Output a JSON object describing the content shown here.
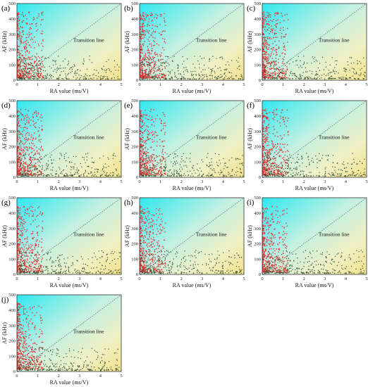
{
  "chart_data": [
    {
      "panel_label": "(a)",
      "type": "scatter",
      "xlabel": "RA value (ms/V)",
      "ylabel": "AF (kHz)",
      "annotation": "Transition line",
      "xlim": [
        0,
        5
      ],
      "ylim": [
        0,
        500
      ],
      "xticks": [
        "0",
        "1",
        "2",
        "3",
        "4",
        "5"
      ],
      "yticks": [
        "0",
        "100",
        "200",
        "300",
        "400",
        "500"
      ],
      "transition_line": [
        [
          0,
          0
        ],
        [
          5,
          500
        ]
      ],
      "grid": false,
      "background": "gradient cyan (top-left) to yellow (bottom-right)",
      "series_colors": {
        "shear": "#e8332f",
        "tensile": "#2e4a34"
      }
    },
    {
      "panel_label": "(b)",
      "type": "scatter",
      "xlabel": "RA value (ms/V)",
      "ylabel": "AF (kHz)",
      "annotation": "Transition line",
      "xlim": [
        0,
        5
      ],
      "ylim": [
        0,
        500
      ],
      "xticks": [
        "0",
        "1",
        "2",
        "3",
        "4",
        "5"
      ],
      "yticks": [
        "0",
        "100",
        "200",
        "300",
        "400",
        "500"
      ],
      "transition_line": [
        [
          0,
          0
        ],
        [
          5,
          500
        ]
      ],
      "grid": false,
      "series_colors": {
        "shear": "#e8332f",
        "tensile": "#2e4a34"
      }
    },
    {
      "panel_label": "(c)",
      "type": "scatter",
      "xlabel": "RA value (ms/V)",
      "ylabel": "AF (kHz)",
      "annotation": "Transition line",
      "xlim": [
        0,
        5
      ],
      "ylim": [
        0,
        500
      ],
      "xticks": [
        "0",
        "1",
        "2",
        "3",
        "4",
        "5"
      ],
      "yticks": [
        "0",
        "100",
        "200",
        "300",
        "400",
        "500"
      ],
      "transition_line": [
        [
          0,
          0
        ],
        [
          5,
          500
        ]
      ],
      "grid": false,
      "series_colors": {
        "shear": "#e8332f",
        "tensile": "#2e4a34"
      }
    },
    {
      "panel_label": "(d)",
      "type": "scatter",
      "xlabel": "RA value (ms/V)",
      "ylabel": "AF (kHz)",
      "annotation": "Transition line",
      "xlim": [
        0,
        5
      ],
      "ylim": [
        0,
        500
      ],
      "xticks": [
        "0",
        "1",
        "2",
        "3",
        "4",
        "5"
      ],
      "yticks": [
        "0",
        "100",
        "200",
        "300",
        "400",
        "500"
      ],
      "transition_line": [
        [
          0,
          0
        ],
        [
          5,
          500
        ]
      ],
      "grid": false,
      "series_colors": {
        "shear": "#e8332f",
        "tensile": "#2e4a34"
      }
    },
    {
      "panel_label": "(e)",
      "type": "scatter",
      "xlabel": "RA value (ms/V)",
      "ylabel": "AF (kHz)",
      "annotation": "Transition line",
      "xlim": [
        0,
        5
      ],
      "ylim": [
        0,
        500
      ],
      "xticks": [
        "0",
        "1",
        "2",
        "3",
        "4",
        "5"
      ],
      "yticks": [
        "0",
        "100",
        "200",
        "300",
        "400",
        "500"
      ],
      "transition_line": [
        [
          0,
          0
        ],
        [
          5,
          500
        ]
      ],
      "grid": false,
      "series_colors": {
        "shear": "#e8332f",
        "tensile": "#2e4a34"
      }
    },
    {
      "panel_label": "(f)",
      "type": "scatter",
      "xlabel": "RA value (ms/V)",
      "ylabel": "AF (kHz)",
      "annotation": "Transition line",
      "xlim": [
        0,
        5
      ],
      "ylim": [
        0,
        500
      ],
      "xticks": [
        "0",
        "1",
        "2",
        "3",
        "4",
        "5"
      ],
      "yticks": [
        "0",
        "100",
        "200",
        "300",
        "400",
        "500"
      ],
      "transition_line": [
        [
          0,
          0
        ],
        [
          5,
          500
        ]
      ],
      "grid": false,
      "series_colors": {
        "shear": "#e8332f",
        "tensile": "#2e4a34"
      }
    },
    {
      "panel_label": "(g)",
      "type": "scatter",
      "xlabel": "RA value (ms/V)",
      "ylabel": "AF (kHz)",
      "annotation": "Transition line",
      "xlim": [
        0,
        5
      ],
      "ylim": [
        0,
        500
      ],
      "xticks": [
        "0",
        "1",
        "2",
        "3",
        "4",
        "5"
      ],
      "yticks": [
        "0",
        "100",
        "200",
        "300",
        "400",
        "500"
      ],
      "transition_line": [
        [
          0,
          0
        ],
        [
          5,
          500
        ]
      ],
      "grid": false,
      "series_colors": {
        "shear": "#e8332f",
        "tensile": "#2e4a34"
      }
    },
    {
      "panel_label": "(h)",
      "type": "scatter",
      "xlabel": "RA value (ms/V)",
      "ylabel": "AF (kHz)",
      "annotation": "Transition line",
      "xlim": [
        0,
        5
      ],
      "ylim": [
        0,
        500
      ],
      "xticks": [
        "0",
        "1",
        "2",
        "3",
        "4",
        "5"
      ],
      "yticks": [
        "0",
        "100",
        "200",
        "300",
        "400",
        "500"
      ],
      "transition_line": [
        [
          0,
          0
        ],
        [
          5,
          500
        ]
      ],
      "grid": false,
      "series_colors": {
        "shear": "#e8332f",
        "tensile": "#2e4a34"
      }
    },
    {
      "panel_label": "(i)",
      "type": "scatter",
      "xlabel": "RA value (ms/V)",
      "ylabel": "AF (kHz)",
      "annotation": "Transition line",
      "xlim": [
        0,
        5
      ],
      "ylim": [
        0,
        500
      ],
      "xticks": [
        "0",
        "1",
        "2",
        "3",
        "4",
        "5"
      ],
      "yticks": [
        "0",
        "100",
        "200",
        "300",
        "400",
        "500"
      ],
      "transition_line": [
        [
          0,
          0
        ],
        [
          5,
          500
        ]
      ],
      "grid": false,
      "series_colors": {
        "shear": "#e8332f",
        "tensile": "#2e4a34"
      }
    },
    {
      "panel_label": "(j)",
      "type": "scatter",
      "xlabel": "RA value (ms/V)",
      "ylabel": "AF (kHz)",
      "annotation": "Transition line",
      "xlim": [
        0,
        5
      ],
      "ylim": [
        0,
        500
      ],
      "xticks": [
        "0",
        "1",
        "2",
        "3",
        "4",
        "5"
      ],
      "yticks": [
        "0",
        "100",
        "200",
        "300",
        "400",
        "500"
      ],
      "transition_line": [
        [
          0,
          0
        ],
        [
          5,
          500
        ]
      ],
      "grid": false,
      "series_colors": {
        "shear": "#e8332f",
        "tensile": "#2e4a34"
      }
    }
  ]
}
